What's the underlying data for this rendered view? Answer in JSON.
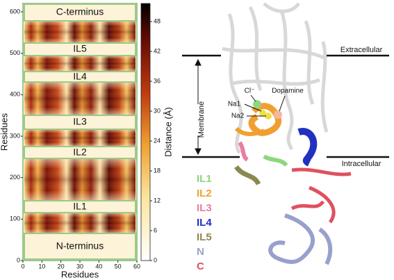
{
  "heatmap": {
    "y_label": "Residues",
    "x_label": "Residues",
    "xticks": [
      0,
      10,
      20,
      30,
      40,
      50,
      60
    ],
    "yticks": [
      0,
      100,
      200,
      300,
      400,
      500,
      600
    ],
    "regions": [
      "C-terminus",
      "IL5",
      "IL4",
      "IL3",
      "IL2",
      "IL1",
      "N-terminus"
    ]
  },
  "colorbar": {
    "label": "Distance (Å)",
    "ticks": [
      0,
      6,
      12,
      18,
      24,
      30,
      36,
      42,
      48
    ]
  },
  "structure": {
    "extracellular": "Extracellular",
    "intracellular": "Intracellular",
    "membrane": "Membrane",
    "labels": [
      "Cl⁻",
      "Na1",
      "Na2",
      "Dopamine"
    ],
    "legend": [
      "IL1",
      "IL2",
      "IL3",
      "IL4",
      "IL5",
      "N",
      "C"
    ]
  }
}
